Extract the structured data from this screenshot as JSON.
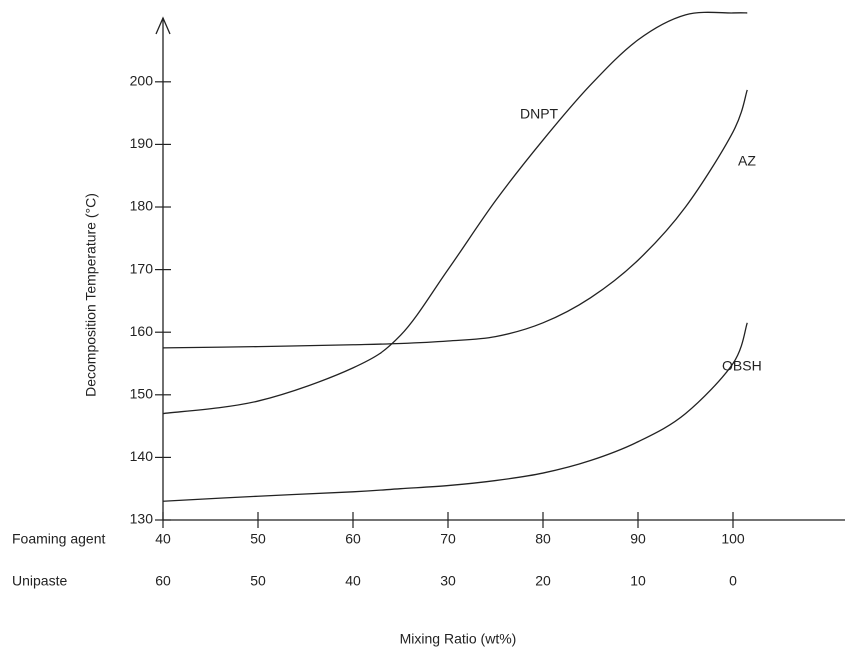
{
  "chart_data": {
    "type": "line",
    "ylabel": "Decomposition Temperature (°C)",
    "xlabel": "Mixing Ratio (wt%)",
    "x": [
      40,
      50,
      60,
      65,
      70,
      75,
      80,
      85,
      90,
      95,
      100,
      101.5
    ],
    "series": [
      {
        "name": "DNPT",
        "color": "#222222",
        "values": [
          147,
          149,
          154.3,
          159.5,
          170,
          181,
          190.7,
          199.5,
          206.7,
          210.7,
          211,
          211
        ]
      },
      {
        "name": "AZ",
        "color": "#222222",
        "values": [
          157.5,
          157.7,
          158,
          158.2,
          158.6,
          159.3,
          161.5,
          165.5,
          171.5,
          180,
          192,
          198.7
        ]
      },
      {
        "name": "OBSH",
        "color": "#222222",
        "values": [
          133,
          133.8,
          134.5,
          135,
          135.5,
          136.3,
          137.5,
          139.5,
          142.5,
          147,
          155,
          161.5
        ]
      }
    ],
    "xlim": [
      40,
      111
    ],
    "ylim": [
      130,
      212
    ],
    "xticks_name": "Foaming agent",
    "xticks": [
      40,
      50,
      60,
      70,
      80,
      90,
      100
    ],
    "x2ticks_name": "Unipaste",
    "x2ticks": [
      60,
      50,
      40,
      30,
      20,
      10,
      0
    ],
    "yticks": [
      130,
      140,
      150,
      160,
      170,
      180,
      190,
      200
    ],
    "grid": false
  }
}
